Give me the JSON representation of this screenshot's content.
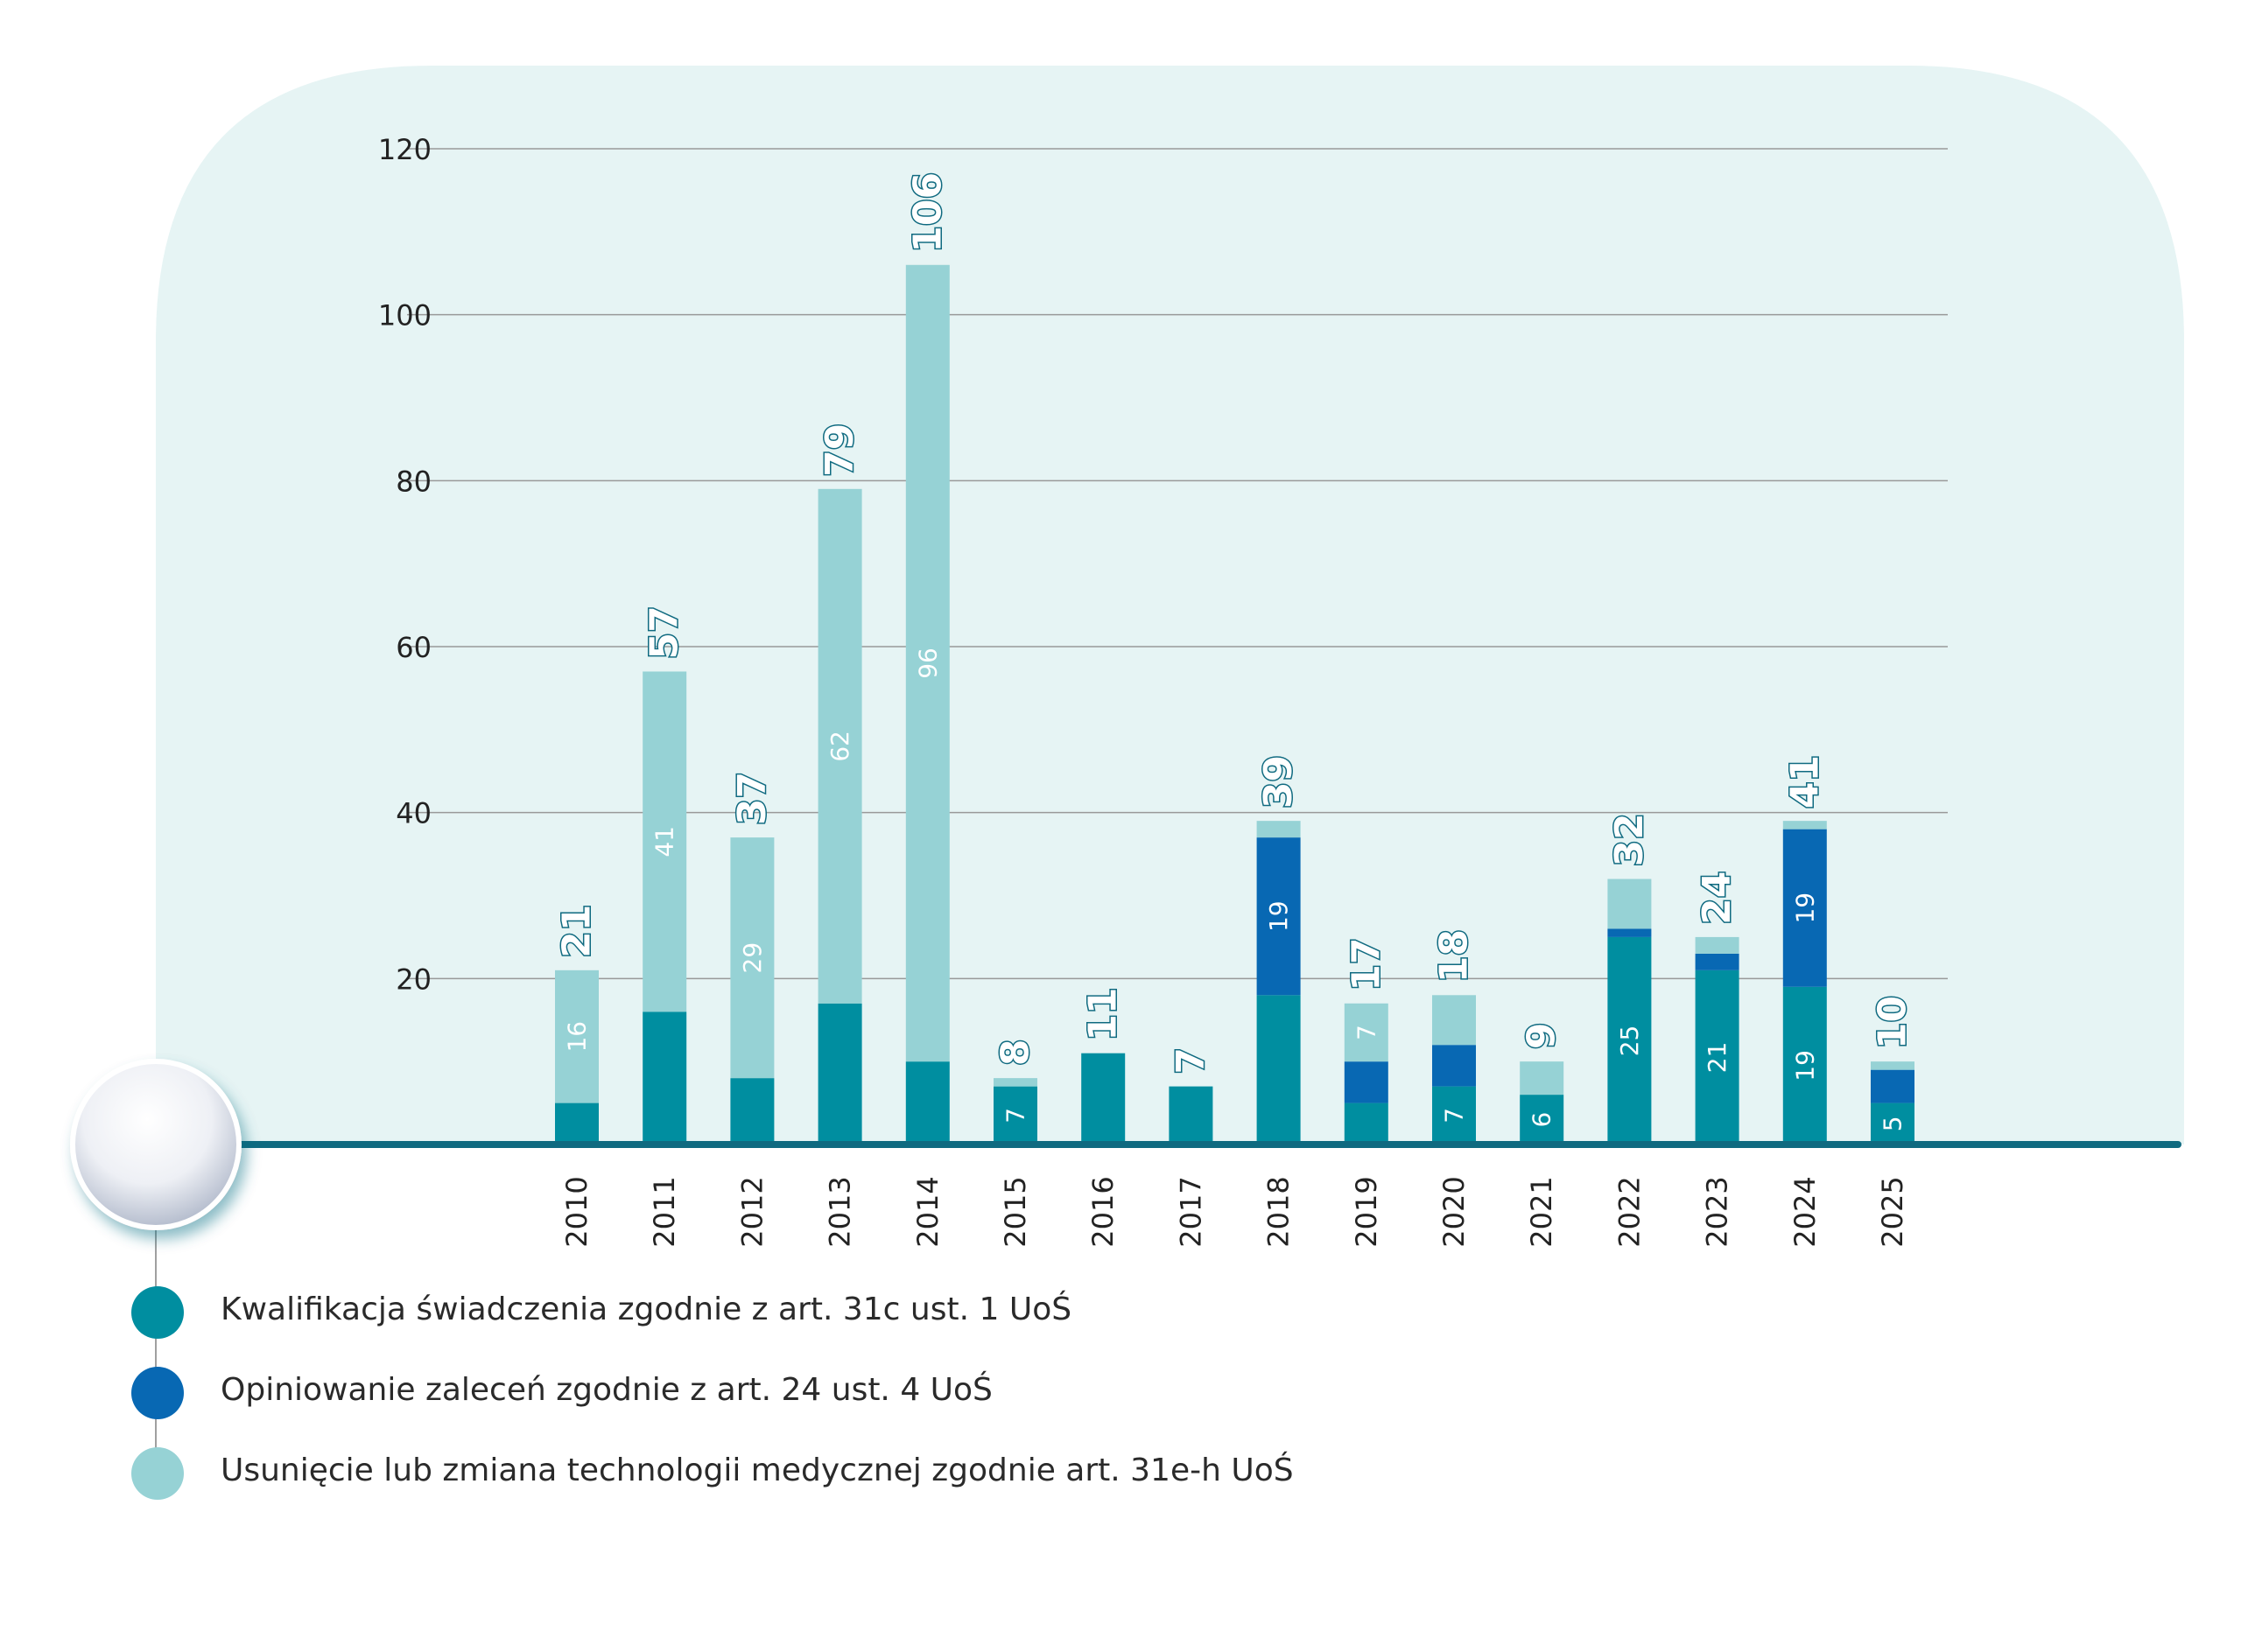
{
  "chart_data": {
    "type": "bar",
    "stacked": true,
    "categories": [
      "2010",
      "2011",
      "2012",
      "2013",
      "2014",
      "2015",
      "2016",
      "2017",
      "2018",
      "2019",
      "2020",
      "2021",
      "2022",
      "2023",
      "2024",
      "2025"
    ],
    "series": [
      {
        "name": "Kwalifikacja świadczenia zgodnie z art. 31c ust. 1 UoŚ",
        "color": "#008ea0",
        "values": [
          5,
          16,
          8,
          17,
          10,
          7,
          11,
          7,
          18,
          5,
          7,
          6,
          25,
          21,
          19,
          5
        ]
      },
      {
        "name": "Opiniowanie zaleceń zgodnie z art. 24 ust. 4 UoŚ",
        "color": "#0868b3",
        "values": [
          0,
          0,
          0,
          0,
          0,
          0,
          0,
          0,
          19,
          5,
          5,
          0,
          1,
          2,
          19,
          4
        ]
      },
      {
        "name": "Usunięcie lub zmiana technologii medycznej zgodnie art. 31e-h UoŚ",
        "color": "#96d2d5",
        "values": [
          16,
          41,
          29,
          62,
          96,
          1,
          0,
          0,
          2,
          7,
          6,
          4,
          6,
          2,
          1,
          1
        ]
      }
    ],
    "segment_labels": [
      [
        "",
        "",
        "16"
      ],
      [
        "",
        "",
        "41"
      ],
      [
        "",
        "",
        "29"
      ],
      [
        "",
        "",
        "62"
      ],
      [
        "",
        "",
        "96"
      ],
      [
        "7",
        "",
        ""
      ],
      [
        "",
        "",
        ""
      ],
      [
        "",
        "",
        ""
      ],
      [
        "",
        "19",
        ""
      ],
      [
        "",
        "",
        "7"
      ],
      [
        "7",
        "",
        ""
      ],
      [
        "6",
        "",
        ""
      ],
      [
        "25",
        "",
        ""
      ],
      [
        "21",
        "",
        ""
      ],
      [
        "19",
        "19",
        ""
      ],
      [
        "5",
        "",
        ""
      ]
    ],
    "total_labels": [
      "21",
      "57",
      "37",
      "79",
      "106",
      "8",
      "11",
      "7",
      "39",
      "17",
      "18",
      "9",
      "32",
      "24",
      "41",
      "10"
    ],
    "y_ticks": [
      "20",
      "40",
      "60",
      "80",
      "100",
      "120"
    ],
    "ylim": [
      0,
      120
    ],
    "grid": true,
    "legend_position": "bottom-left",
    "colors": {
      "background": "#e6f4f4",
      "axis": "#0f6a80",
      "grid": "#999999",
      "total_label_outline": "#0f6a80"
    }
  }
}
